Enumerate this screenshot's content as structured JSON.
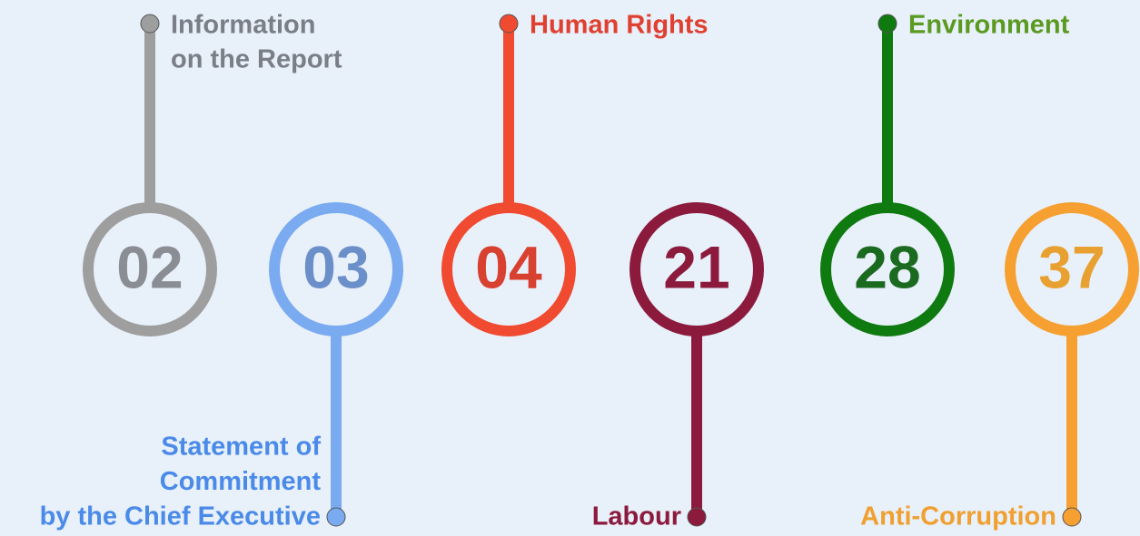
{
  "items": [
    {
      "number": "02",
      "label": [
        "Information",
        "on the Report"
      ],
      "direction": "up",
      "ring": "#9e9e9e",
      "number_color": "#8a8e94",
      "label_color": "#7a7f87"
    },
    {
      "number": "03",
      "label": [
        "Statement of",
        "Commitment",
        "by the Chief Executive"
      ],
      "direction": "down",
      "ring": "#7aaaf0",
      "number_color": "#6b8fc8",
      "label_color": "#4a8ae8"
    },
    {
      "number": "04",
      "label": [
        "Human Rights"
      ],
      "direction": "up",
      "ring": "#f04a30",
      "number_color": "#d84030",
      "label_color": "#e04030"
    },
    {
      "number": "21",
      "label": [
        "Labour"
      ],
      "direction": "down",
      "ring": "#8b1a3c",
      "number_color": "#8b1a3c",
      "label_color": "#8b1a3c"
    },
    {
      "number": "28",
      "label": [
        "Environment"
      ],
      "direction": "up",
      "ring": "#0f7a10",
      "number_color": "#1a6a20",
      "label_color": "#5a9a20"
    },
    {
      "number": "37",
      "label": [
        "Anti-Corruption"
      ],
      "direction": "down",
      "ring": "#f5a030",
      "number_color": "#e8a030",
      "label_color": "#f0a030"
    }
  ]
}
